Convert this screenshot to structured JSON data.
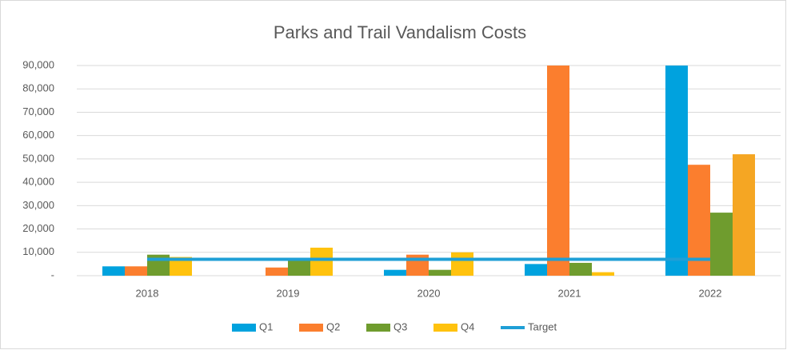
{
  "chart_data": {
    "type": "bar",
    "title": "Parks and Trail Vandalism Costs",
    "categories": [
      "2018",
      "2019",
      "2020",
      "2021",
      "2022"
    ],
    "series": [
      {
        "name": "Q1",
        "color": "#00a2de",
        "values": [
          4000,
          0,
          2500,
          5000,
          90000
        ]
      },
      {
        "name": "Q2",
        "color": "#fb7e2e",
        "values": [
          4000,
          3500,
          9000,
          90000,
          47500
        ]
      },
      {
        "name": "Q3",
        "color": "#6f9c2e",
        "values": [
          9000,
          7000,
          2500,
          5500,
          27000
        ]
      },
      {
        "name": "Q4",
        "color": "#ffc20e",
        "colors": [
          "#ffc20e",
          "#ffc20e",
          "#ffc20e",
          "#ffc20e",
          "#f5a623"
        ],
        "values": [
          8000,
          12000,
          10000,
          1500,
          52000
        ]
      },
      {
        "name": "Target",
        "type": "line",
        "color": "#1f9fd6",
        "values": [
          7000,
          7000,
          7000,
          7000,
          7000
        ]
      }
    ],
    "ylim": [
      0,
      90000
    ],
    "yticks": [
      {
        "value": 0,
        "label": "-"
      },
      {
        "value": 10000,
        "label": "10,000"
      },
      {
        "value": 20000,
        "label": "20,000"
      },
      {
        "value": 30000,
        "label": "30,000"
      },
      {
        "value": 40000,
        "label": "40,000"
      },
      {
        "value": 50000,
        "label": "50,000"
      },
      {
        "value": 60000,
        "label": "60,000"
      },
      {
        "value": 70000,
        "label": "70,000"
      },
      {
        "value": 80000,
        "label": "80,000"
      },
      {
        "value": 90000,
        "label": "90,000"
      }
    ],
    "grid": true,
    "legend": "bottom"
  }
}
